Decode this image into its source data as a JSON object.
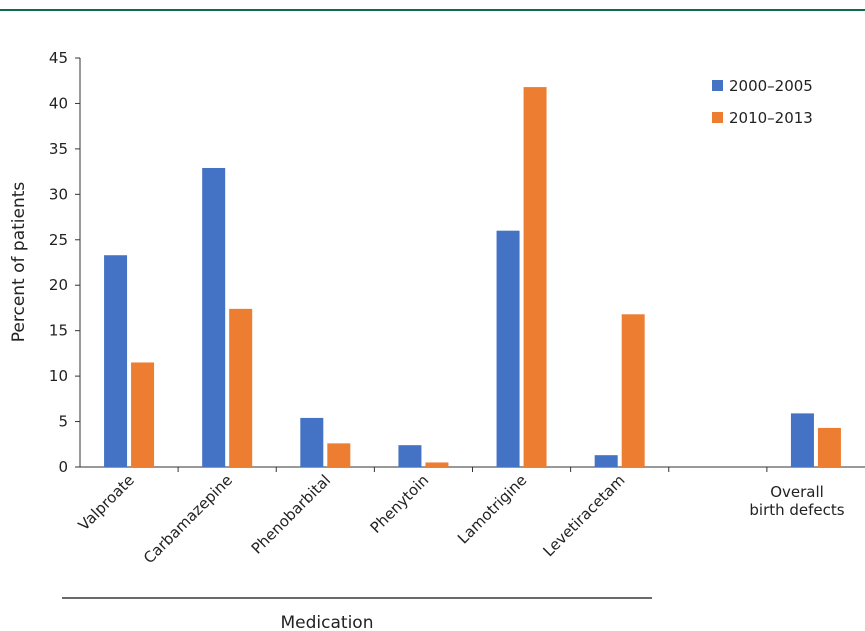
{
  "chart_data": {
    "type": "bar",
    "categories": [
      "Valproate",
      "Carbamazepine",
      "Phenobarbital",
      "Phenytoin",
      "Lamotrigine",
      "Levetiracetam",
      "",
      "Overall birth defects"
    ],
    "category_label_lines": [
      [
        "Valproate"
      ],
      [
        "Carbamazepine"
      ],
      [
        "Phenobarbital"
      ],
      [
        "Phenytoin"
      ],
      [
        "Lamotrigine"
      ],
      [
        "Levetiracetam"
      ],
      [],
      [
        "Overall",
        "birth defects"
      ]
    ],
    "series": [
      {
        "name": "2000–2005",
        "color": "#4472c4",
        "values": [
          23.3,
          32.9,
          5.4,
          2.4,
          26.0,
          1.3,
          null,
          5.9
        ]
      },
      {
        "name": "2010–2013",
        "color": "#ed7d31",
        "values": [
          11.5,
          17.4,
          2.6,
          0.5,
          41.8,
          16.8,
          null,
          4.3
        ]
      }
    ],
    "ylabel": "Percent of patients",
    "xlabel": "Medication",
    "ylim": [
      0,
      45
    ],
    "yticks": [
      0,
      5,
      10,
      15,
      20,
      25,
      30,
      35,
      40,
      45
    ],
    "legend_position": "top-right",
    "grid": false
  }
}
